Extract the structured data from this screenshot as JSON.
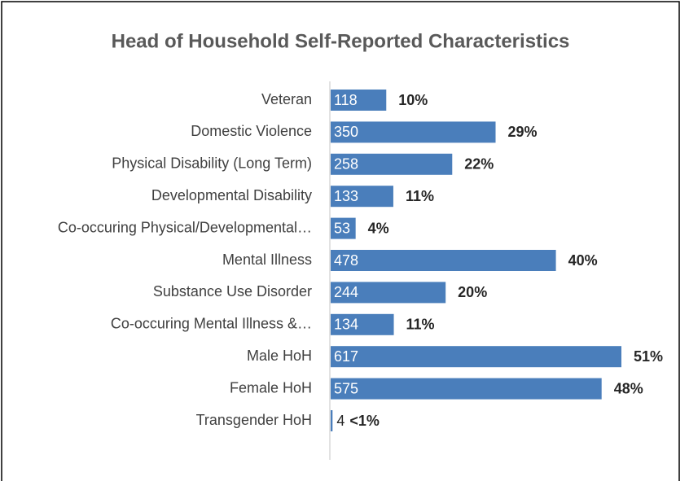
{
  "chart_data": {
    "type": "bar",
    "orientation": "horizontal",
    "title": "Head of Household Self-Reported Characteristics",
    "categories": [
      "Veteran",
      "Domestic Violence",
      "Physical Disability (Long Term)",
      "Developmental Disability",
      "Co-occuring Physical/Developmental…",
      "Mental Illness",
      "Substance Use Disorder",
      "Co-occuring Mental Illness &…",
      "Male HoH",
      "Female HoH",
      "Transgender HoH"
    ],
    "values": [
      118,
      350,
      258,
      133,
      53,
      478,
      244,
      134,
      617,
      575,
      4
    ],
    "color": "#4a7ebb",
    "percentages": {
      "values": [
        10,
        29,
        22,
        11,
        4,
        40,
        20,
        11,
        51,
        48,
        0.3
      ],
      "value_labels": [
        "10%",
        "29%",
        "22%",
        "11%",
        "4%",
        "40%",
        "20%",
        "11%",
        "51%",
        "48%",
        "<1%"
      ]
    }
  }
}
